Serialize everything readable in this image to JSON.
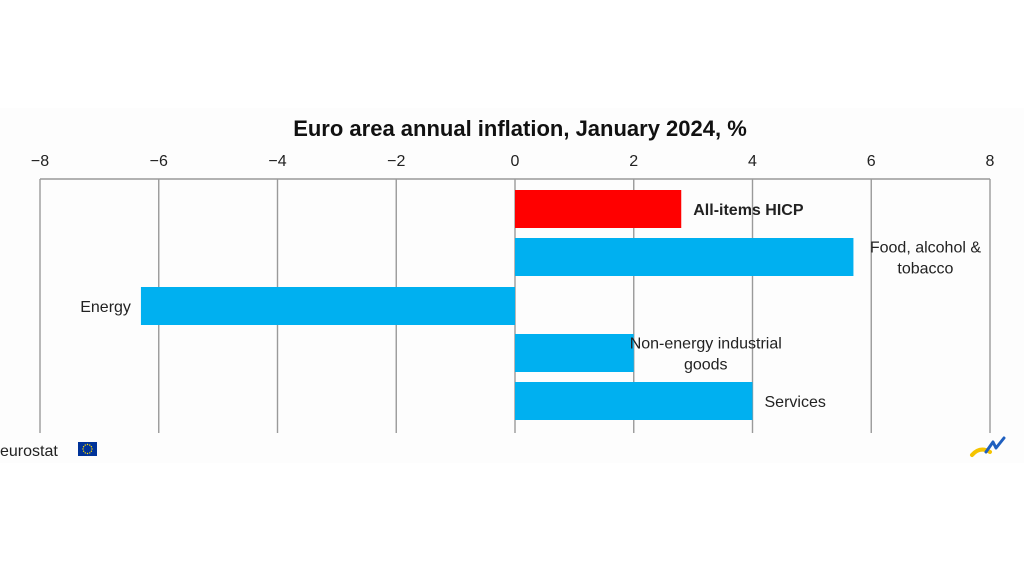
{
  "chart_data": {
    "type": "bar",
    "orientation": "horizontal",
    "title": "Euro area annual inflation, January 2024, %",
    "categories": [
      "All-items HICP",
      "Food, alcohol & tobacco",
      "Energy",
      "Non-energy industrial goods",
      "Services"
    ],
    "category_label_lines": [
      [
        "All-items HICP"
      ],
      [
        "Food, alcohol &",
        "tobacco"
      ],
      [
        "Energy"
      ],
      [
        "Non-energy industrial",
        "goods"
      ],
      [
        "Services"
      ]
    ],
    "values": [
      2.8,
      5.7,
      -6.3,
      2.0,
      4.0
    ],
    "bar_colors": [
      "#ff0000",
      "#00b0f0",
      "#00b0f0",
      "#00b0f0",
      "#00b0f0"
    ],
    "highlight_category": "All-items HICP",
    "xlim": [
      -8,
      8
    ],
    "xticks": [
      -8,
      -6,
      -4,
      -2,
      0,
      2,
      4,
      6,
      8
    ],
    "x_axis_position": "top",
    "grid": true,
    "legend": "none"
  },
  "branding": {
    "source_logo_text": "eurostat",
    "flag_color": "#003399",
    "star_color": "#ffdd00",
    "corner_mark_colors": [
      "#f5c400",
      "#1f5fbf"
    ]
  }
}
